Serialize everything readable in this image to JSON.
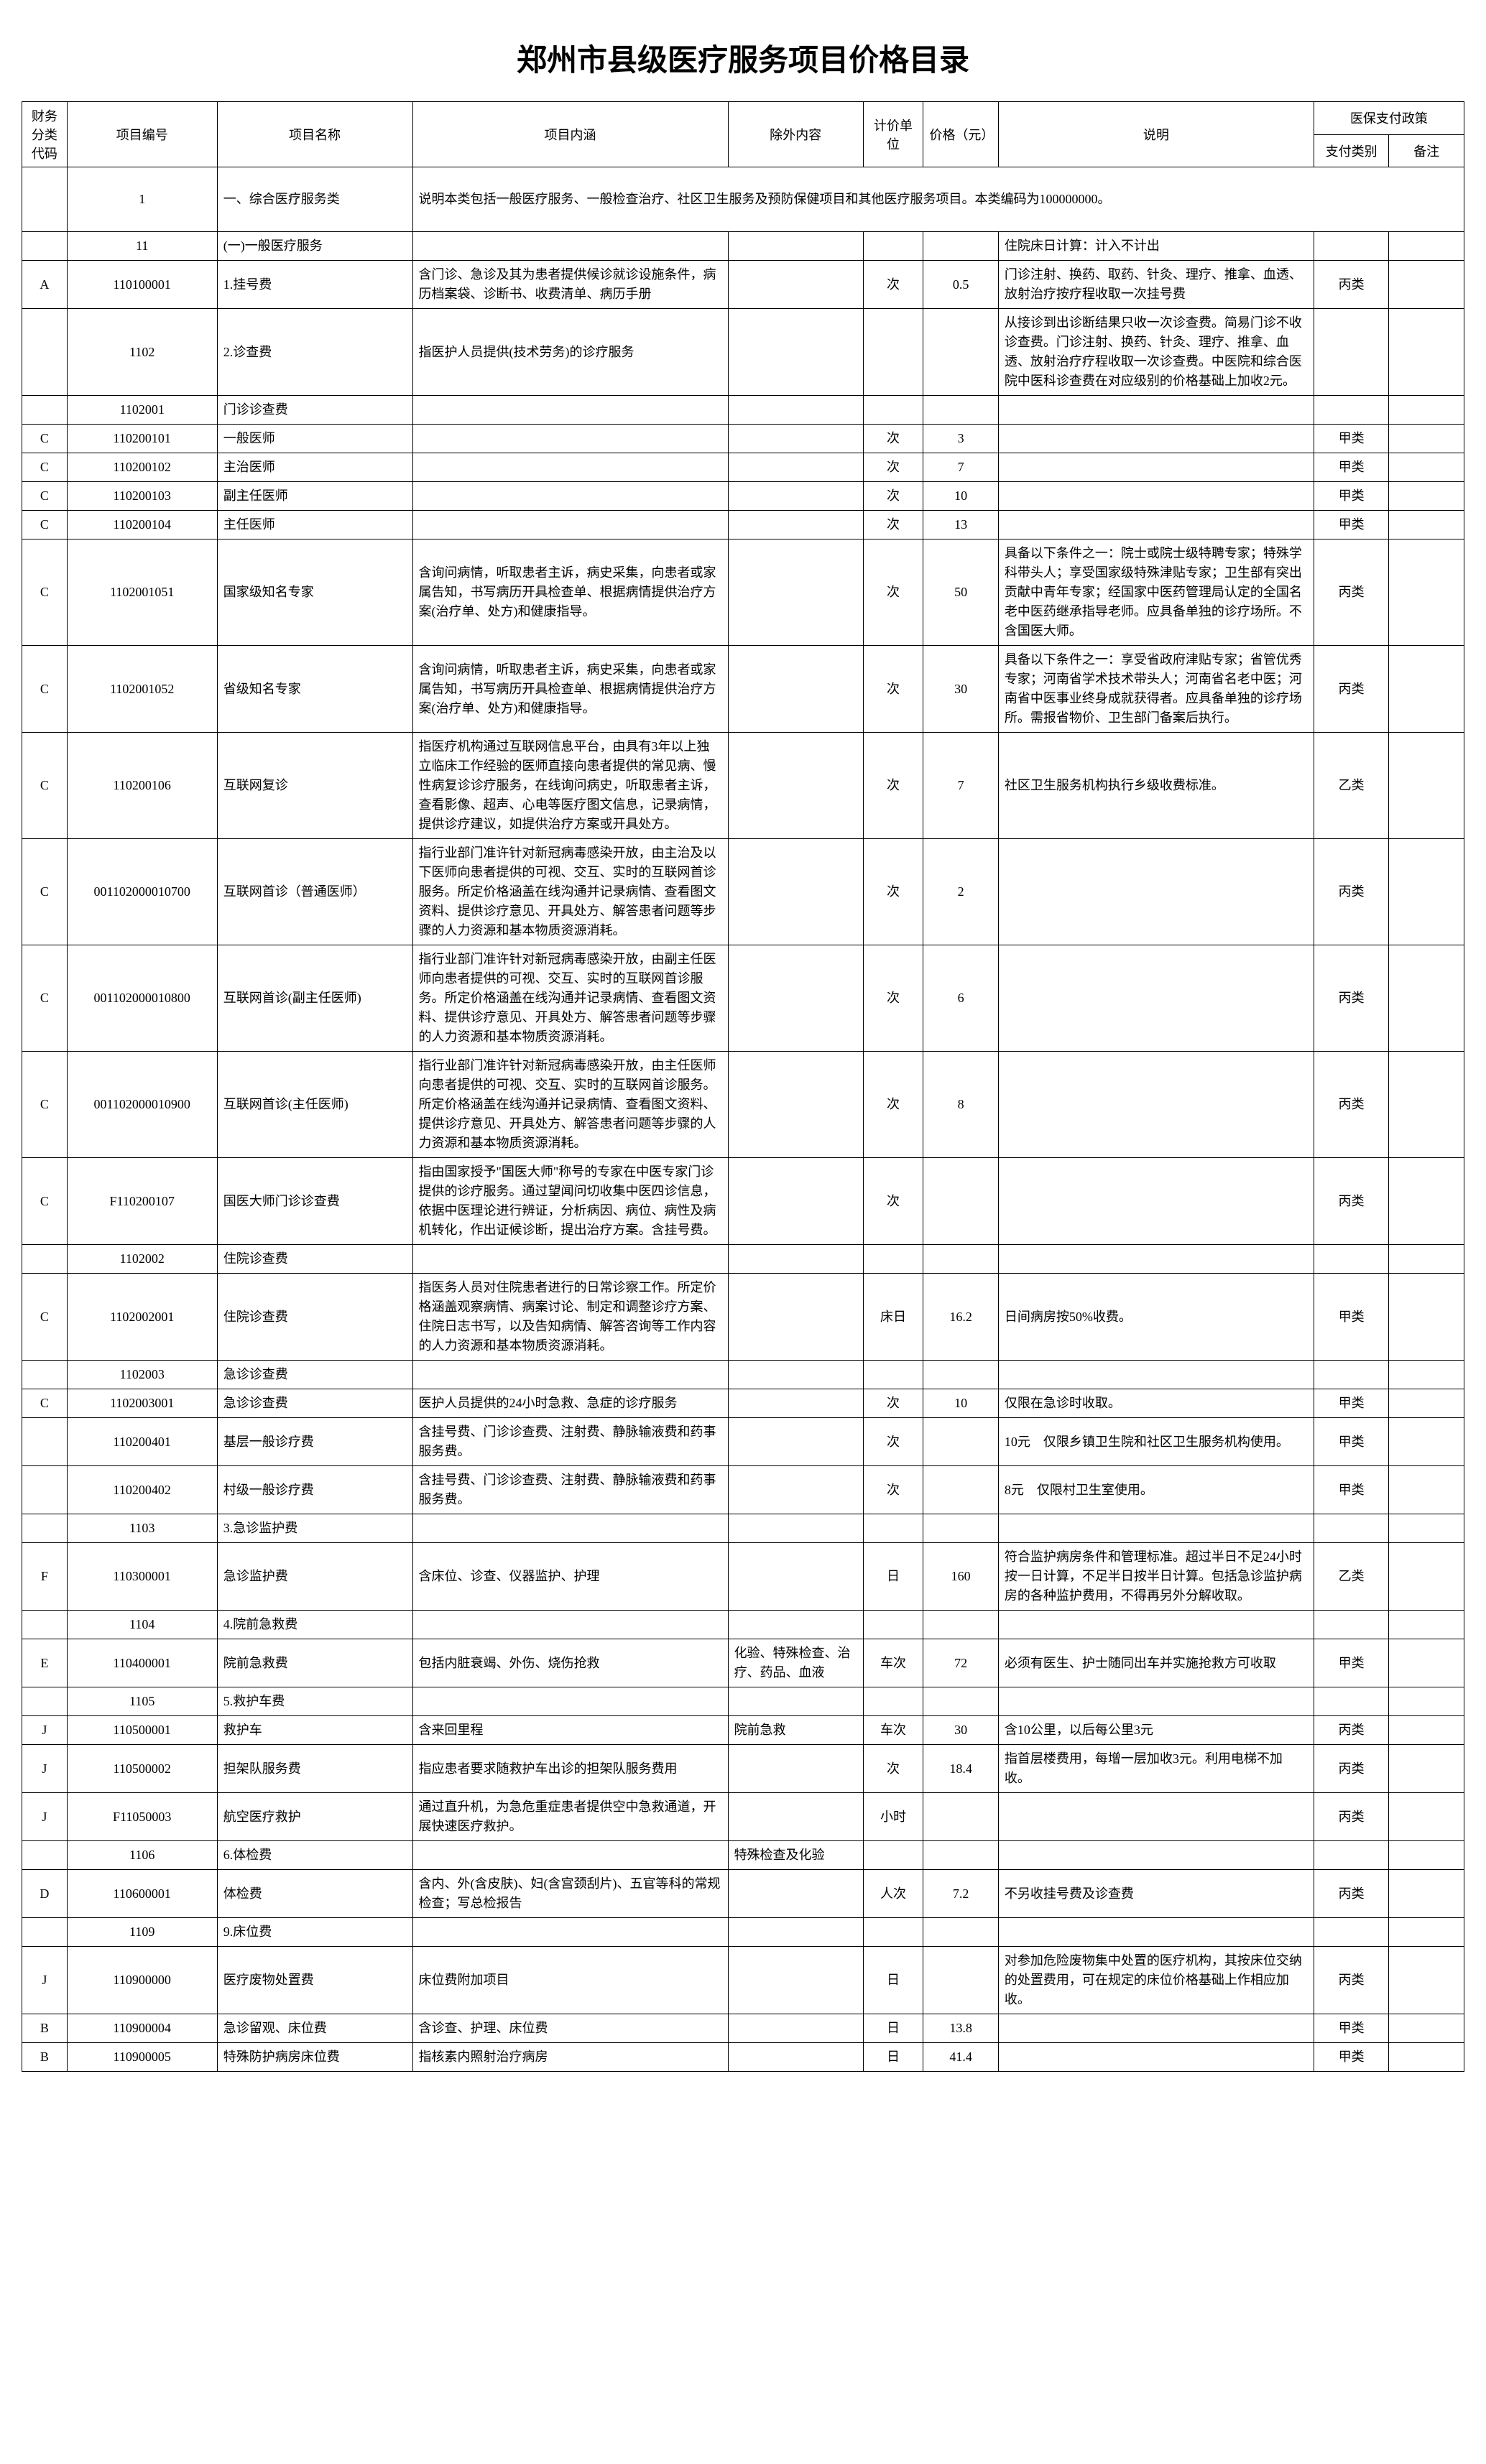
{
  "title": "郑州市县级医疗服务项目价格目录",
  "headers": {
    "fin": "财务分类代码",
    "code": "项目编号",
    "name": "项目名称",
    "desc": "项目内涵",
    "excl": "除外内容",
    "unit": "计价单位",
    "price": "价格（元）",
    "note": "说明",
    "policy": "医保支付政策",
    "pay": "支付类别",
    "remark": "备注"
  },
  "rows": [
    {
      "fin": "",
      "code": "1",
      "name": "一、综合医疗服务类",
      "desc": "说明本类包括一般医疗服务、一般检查治疗、社区卫生服务及预防保健项目和其他医疗服务项目。本类编码为100000000。",
      "excl": "",
      "unit": "",
      "price": "",
      "note": "",
      "pay": "",
      "remark": "",
      "span": true,
      "h": 90
    },
    {
      "fin": "",
      "code": "11",
      "name": "(一)一般医疗服务",
      "desc": "",
      "excl": "",
      "unit": "",
      "price": "",
      "note": "住院床日计算：计入不计出",
      "pay": "",
      "remark": ""
    },
    {
      "fin": "A",
      "code": "110100001",
      "name": "1.挂号费",
      "desc": "含门诊、急诊及其为患者提供候诊就诊设施条件，病历档案袋、诊断书、收费清单、病历手册",
      "excl": "",
      "unit": "次",
      "price": "0.5",
      "note": "门诊注射、换药、取药、针灸、理疗、推拿、血透、放射治疗按疗程收取一次挂号费",
      "pay": "丙类",
      "remark": ""
    },
    {
      "fin": "",
      "code": "1102",
      "name": "2.诊查费",
      "desc": "指医护人员提供(技术劳务)的诊疗服务",
      "excl": "",
      "unit": "",
      "price": "",
      "note": "从接诊到出诊断结果只收一次诊查费。简易门诊不收诊查费。门诊注射、换药、针灸、理疗、推拿、血透、放射治疗疗程收取一次诊查费。中医院和综合医院中医科诊查费在对应级别的价格基础上加收2元。",
      "pay": "",
      "remark": ""
    },
    {
      "fin": "",
      "code": "1102001",
      "name": "门诊诊查费",
      "desc": "",
      "excl": "",
      "unit": "",
      "price": "",
      "note": "",
      "pay": "",
      "remark": ""
    },
    {
      "fin": "C",
      "code": "110200101",
      "name": "一般医师",
      "desc": "",
      "excl": "",
      "unit": "次",
      "price": "3",
      "note": "",
      "pay": "甲类",
      "remark": ""
    },
    {
      "fin": "C",
      "code": "110200102",
      "name": "主治医师",
      "desc": "",
      "excl": "",
      "unit": "次",
      "price": "7",
      "note": "",
      "pay": "甲类",
      "remark": ""
    },
    {
      "fin": "C",
      "code": "110200103",
      "name": "副主任医师",
      "desc": "",
      "excl": "",
      "unit": "次",
      "price": "10",
      "note": "",
      "pay": "甲类",
      "remark": ""
    },
    {
      "fin": "C",
      "code": "110200104",
      "name": "主任医师",
      "desc": "",
      "excl": "",
      "unit": "次",
      "price": "13",
      "note": "",
      "pay": "甲类",
      "remark": ""
    },
    {
      "fin": "C",
      "code": "1102001051",
      "name": "国家级知名专家",
      "desc": "含询问病情，听取患者主诉，病史采集，向患者或家属告知，书写病历开具检查单、根据病情提供治疗方案(治疗单、处方)和健康指导。",
      "excl": "",
      "unit": "次",
      "price": "50",
      "note": "具备以下条件之一：院士或院士级特聘专家；特殊学科带头人；享受国家级特殊津贴专家；卫生部有突出贡献中青年专家；经国家中医药管理局认定的全国名老中医药继承指导老师。应具备单独的诊疗场所。不含国医大师。",
      "pay": "丙类",
      "remark": ""
    },
    {
      "fin": "C",
      "code": "1102001052",
      "name": "省级知名专家",
      "desc": "含询问病情，听取患者主诉，病史采集，向患者或家属告知，书写病历开具检查单、根据病情提供治疗方案(治疗单、处方)和健康指导。",
      "excl": "",
      "unit": "次",
      "price": "30",
      "note": "具备以下条件之一：享受省政府津贴专家；省管优秀专家；河南省学术技术带头人；河南省名老中医；河南省中医事业终身成就获得者。应具备单独的诊疗场所。需报省物价、卫生部门备案后执行。",
      "pay": "丙类",
      "remark": ""
    },
    {
      "fin": "C",
      "code": "110200106",
      "name": "互联网复诊",
      "desc": "指医疗机构通过互联网信息平台，由具有3年以上独立临床工作经验的医师直接向患者提供的常见病、慢性病复诊诊疗服务，在线询问病史，听取患者主诉，查看影像、超声、心电等医疗图文信息，记录病情，提供诊疗建议，如提供治疗方案或开具处方。",
      "excl": "",
      "unit": "次",
      "price": "7",
      "note": "社区卫生服务机构执行乡级收费标准。",
      "pay": "乙类",
      "remark": ""
    },
    {
      "fin": "C",
      "code": "001102000010700",
      "name": "互联网首诊（普通医师）",
      "desc": "指行业部门准许针对新冠病毒感染开放，由主治及以下医师向患者提供的可视、交互、实时的互联网首诊服务。所定价格涵盖在线沟通并记录病情、查看图文资料、提供诊疗意见、开具处方、解答患者问题等步骤的人力资源和基本物质资源消耗。",
      "excl": "",
      "unit": "次",
      "price": "2",
      "note": "",
      "pay": "丙类",
      "remark": ""
    },
    {
      "fin": "C",
      "code": "001102000010800",
      "name": "互联网首诊(副主任医师)",
      "desc": "指行业部门准许针对新冠病毒感染开放，由副主任医师向患者提供的可视、交互、实时的互联网首诊服务。所定价格涵盖在线沟通并记录病情、查看图文资料、提供诊疗意见、开具处方、解答患者问题等步骤的人力资源和基本物质资源消耗。",
      "excl": "",
      "unit": "次",
      "price": "6",
      "note": "",
      "pay": "丙类",
      "remark": ""
    },
    {
      "fin": "C",
      "code": "001102000010900",
      "name": "互联网首诊(主任医师)",
      "desc": "指行业部门准许针对新冠病毒感染开放，由主任医师向患者提供的可视、交互、实时的互联网首诊服务。所定价格涵盖在线沟通并记录病情、查看图文资料、提供诊疗意见、开具处方、解答患者问题等步骤的人力资源和基本物质资源消耗。",
      "excl": "",
      "unit": "次",
      "price": "8",
      "note": "",
      "pay": "丙类",
      "remark": ""
    },
    {
      "fin": "C",
      "code": "F110200107",
      "name": "国医大师门诊诊查费",
      "desc": "指由国家授予\"国医大师\"称号的专家在中医专家门诊提供的诊疗服务。通过望闻问切收集中医四诊信息，依据中医理论进行辨证，分析病因、病位、病性及病机转化，作出证候诊断，提出治疗方案。含挂号费。",
      "excl": "",
      "unit": "次",
      "price": "",
      "note": "",
      "pay": "丙类",
      "remark": ""
    },
    {
      "fin": "",
      "code": "1102002",
      "name": "住院诊查费",
      "desc": "",
      "excl": "",
      "unit": "",
      "price": "",
      "note": "",
      "pay": "",
      "remark": ""
    },
    {
      "fin": "C",
      "code": "1102002001",
      "name": "住院诊查费",
      "desc": "指医务人员对住院患者进行的日常诊察工作。所定价格涵盖观察病情、病案讨论、制定和调整诊疗方案、住院日志书写，以及告知病情、解答咨询等工作内容的人力资源和基本物质资源消耗。",
      "excl": "",
      "unit": "床日",
      "price": "16.2",
      "note": "日间病房按50%收费。",
      "pay": "甲类",
      "remark": ""
    },
    {
      "fin": "",
      "code": "1102003",
      "name": "急诊诊查费",
      "desc": "",
      "excl": "",
      "unit": "",
      "price": "",
      "note": "",
      "pay": "",
      "remark": ""
    },
    {
      "fin": "C",
      "code": "1102003001",
      "name": "急诊诊查费",
      "desc": "医护人员提供的24小时急救、急症的诊疗服务",
      "excl": "",
      "unit": "次",
      "price": "10",
      "note": "仅限在急诊时收取。",
      "pay": "甲类",
      "remark": ""
    },
    {
      "fin": "",
      "code": "110200401",
      "name": "基层一般诊疗费",
      "desc": "含挂号费、门诊诊查费、注射费、静脉输液费和药事服务费。",
      "excl": "",
      "unit": "次",
      "price": "",
      "note": "10元　仅限乡镇卫生院和社区卫生服务机构使用。",
      "pay": "甲类",
      "remark": ""
    },
    {
      "fin": "",
      "code": "110200402",
      "name": "村级一般诊疗费",
      "desc": "含挂号费、门诊诊查费、注射费、静脉输液费和药事服务费。",
      "excl": "",
      "unit": "次",
      "price": "",
      "note": "8元　仅限村卫生室使用。",
      "pay": "甲类",
      "remark": ""
    },
    {
      "fin": "",
      "code": "1103",
      "name": "3.急诊监护费",
      "desc": "",
      "excl": "",
      "unit": "",
      "price": "",
      "note": "",
      "pay": "",
      "remark": ""
    },
    {
      "fin": "F",
      "code": "110300001",
      "name": "急诊监护费",
      "desc": "含床位、诊查、仪器监护、护理",
      "excl": "",
      "unit": "日",
      "price": "160",
      "note": "符合监护病房条件和管理标准。超过半日不足24小时按一日计算，不足半日按半日计算。包括急诊监护病房的各种监护费用，不得再另外分解收取。",
      "pay": "乙类",
      "remark": ""
    },
    {
      "fin": "",
      "code": "1104",
      "name": "4.院前急救费",
      "desc": "",
      "excl": "",
      "unit": "",
      "price": "",
      "note": "",
      "pay": "",
      "remark": ""
    },
    {
      "fin": "E",
      "code": "110400001",
      "name": "院前急救费",
      "desc": "包括内脏衰竭、外伤、烧伤抢救",
      "excl": "化验、特殊检查、治疗、药品、血液",
      "unit": "车次",
      "price": "72",
      "note": "必须有医生、护士随同出车并实施抢救方可收取",
      "pay": "甲类",
      "remark": ""
    },
    {
      "fin": "",
      "code": "1105",
      "name": "5.救护车费",
      "desc": "",
      "excl": "",
      "unit": "",
      "price": "",
      "note": "",
      "pay": "",
      "remark": ""
    },
    {
      "fin": "J",
      "code": "110500001",
      "name": "救护车",
      "desc": "含来回里程",
      "excl": "院前急救",
      "unit": "车次",
      "price": "30",
      "note": "含10公里，以后每公里3元",
      "pay": "丙类",
      "remark": ""
    },
    {
      "fin": "J",
      "code": "110500002",
      "name": "担架队服务费",
      "desc": "指应患者要求随救护车出诊的担架队服务费用",
      "excl": "",
      "unit": "次",
      "price": "18.4",
      "note": "指首层楼费用，每增一层加收3元。利用电梯不加收。",
      "pay": "丙类",
      "remark": ""
    },
    {
      "fin": "J",
      "code": "F11050003",
      "name": "航空医疗救护",
      "desc": "通过直升机，为急危重症患者提供空中急救通道，开展快速医疗救护。",
      "excl": "",
      "unit": "小时",
      "price": "",
      "note": "",
      "pay": "丙类",
      "remark": ""
    },
    {
      "fin": "",
      "code": "1106",
      "name": "6.体检费",
      "desc": "",
      "excl": "特殊检查及化验",
      "unit": "",
      "price": "",
      "note": "",
      "pay": "",
      "remark": ""
    },
    {
      "fin": "D",
      "code": "110600001",
      "name": "体检费",
      "desc": "含内、外(含皮肤)、妇(含宫颈刮片)、五官等科的常规检查；写总检报告",
      "excl": "",
      "unit": "人次",
      "price": "7.2",
      "note": "不另收挂号费及诊查费",
      "pay": "丙类",
      "remark": ""
    },
    {
      "fin": "",
      "code": "1109",
      "name": "9.床位费",
      "desc": "",
      "excl": "",
      "unit": "",
      "price": "",
      "note": "",
      "pay": "",
      "remark": ""
    },
    {
      "fin": "J",
      "code": "110900000",
      "name": "医疗废物处置费",
      "desc": "床位费附加项目",
      "excl": "",
      "unit": "日",
      "price": "",
      "note": "对参加危险废物集中处置的医疗机构，其按床位交纳的处置费用，可在规定的床位价格基础上作相应加收。",
      "pay": "丙类",
      "remark": ""
    },
    {
      "fin": "B",
      "code": "110900004",
      "name": "急诊留观、床位费",
      "desc": "含诊查、护理、床位费",
      "excl": "",
      "unit": "日",
      "price": "13.8",
      "note": "",
      "pay": "甲类",
      "remark": ""
    },
    {
      "fin": "B",
      "code": "110900005",
      "name": "特殊防护病房床位费",
      "desc": "指核素内照射治疗病房",
      "excl": "",
      "unit": "日",
      "price": "41.4",
      "note": "",
      "pay": "甲类",
      "remark": ""
    }
  ]
}
